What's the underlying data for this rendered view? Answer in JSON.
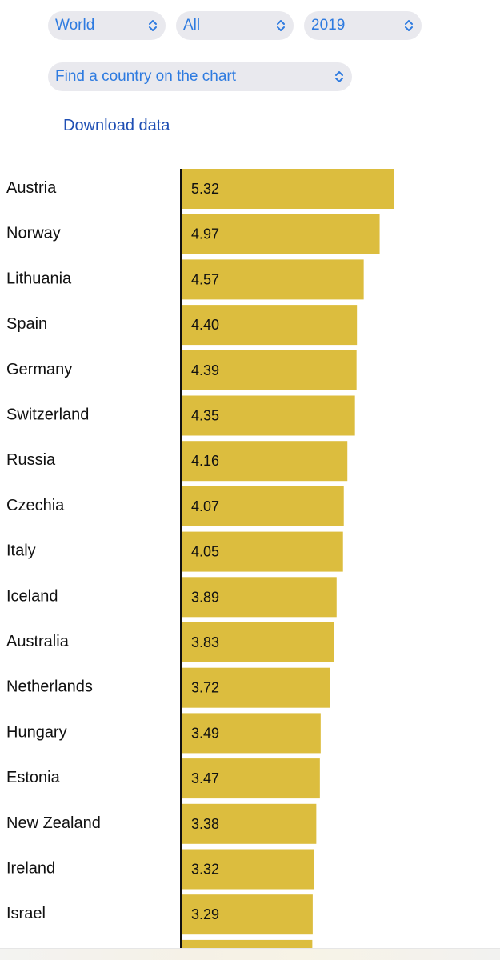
{
  "filters": {
    "region": "World",
    "subset": "All",
    "year": "2019",
    "country_search": "Find a country on the chart"
  },
  "download_label": "Download data",
  "colors": {
    "bar": "#dcbd3e",
    "select_text": "#2e7be0",
    "link": "#1f4fb4",
    "select_bg": "#e9e9ee"
  },
  "chart_data": {
    "type": "bar",
    "orientation": "horizontal",
    "categories": [
      "Austria",
      "Norway",
      "Lithuania",
      "Spain",
      "Germany",
      "Switzerland",
      "Russia",
      "Czechia",
      "Italy",
      "Iceland",
      "Australia",
      "Netherlands",
      "Hungary",
      "Estonia",
      "New Zealand",
      "Ireland",
      "Israel"
    ],
    "values": [
      5.32,
      4.97,
      4.57,
      4.4,
      4.39,
      4.35,
      4.16,
      4.07,
      4.05,
      3.89,
      3.83,
      3.72,
      3.49,
      3.47,
      3.38,
      3.32,
      3.29
    ],
    "value_labels": [
      "5.32",
      "4.97",
      "4.57",
      "4.40",
      "4.39",
      "4.35",
      "4.16",
      "4.07",
      "4.05",
      "3.89",
      "3.83",
      "3.72",
      "3.49",
      "3.47",
      "3.38",
      "3.32",
      "3.29"
    ],
    "partial_next_value": 3.28,
    "xlim": [
      0,
      5.32
    ],
    "title": "",
    "xlabel": "",
    "ylabel": ""
  }
}
